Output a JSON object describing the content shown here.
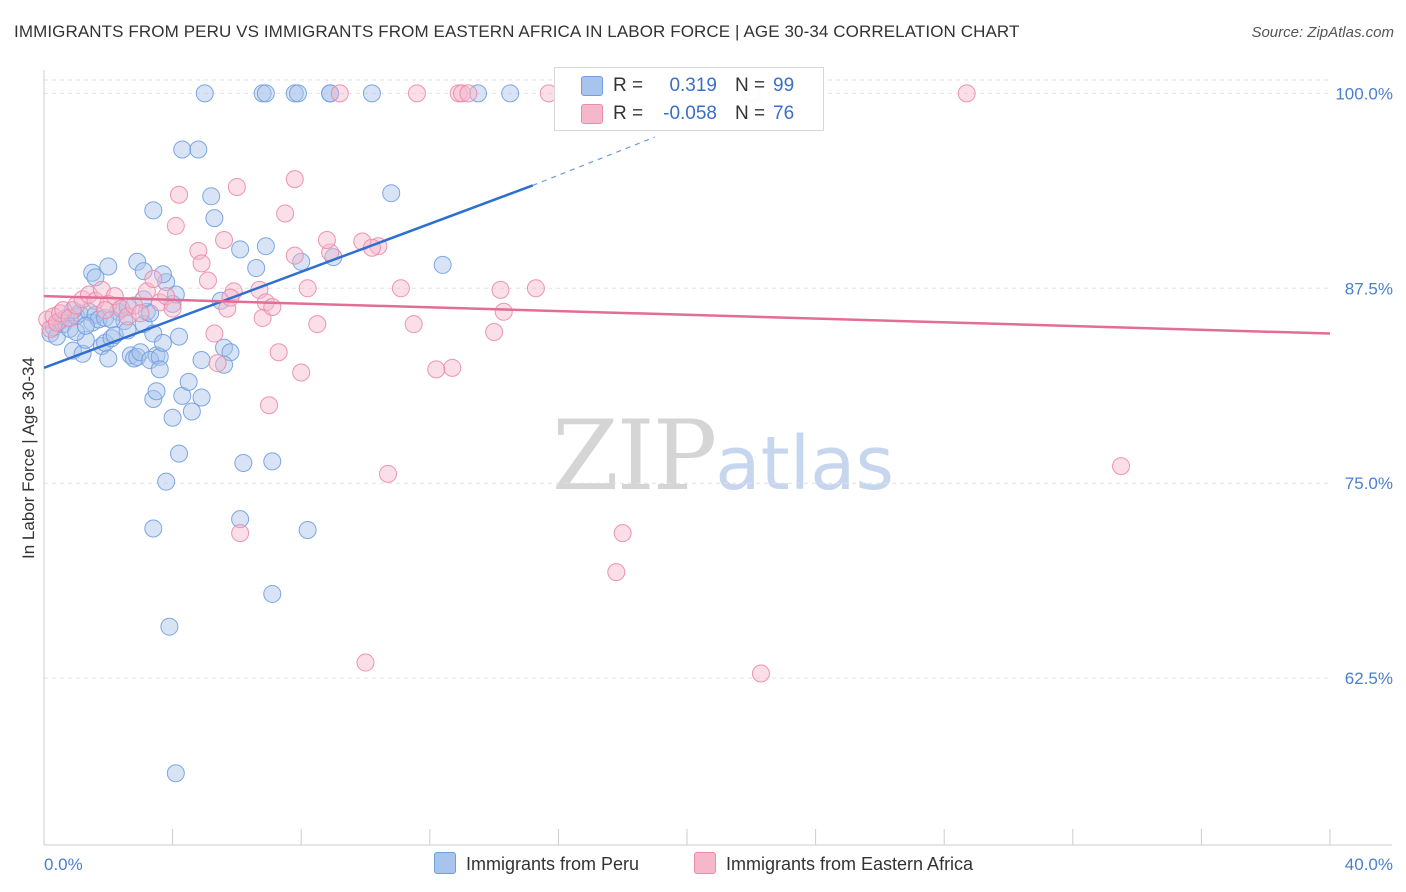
{
  "header": {
    "title": "IMMIGRANTS FROM PERU VS IMMIGRANTS FROM EASTERN AFRICA IN LABOR FORCE | AGE 30-34 CORRELATION CHART",
    "source": "Source: ZipAtlas.com"
  },
  "watermark": {
    "zip": "ZIP",
    "atlas": "atlas"
  },
  "legend": {
    "rows": [
      {
        "r_label": "R =",
        "r_value": "0.319",
        "n_label": "N =",
        "n_value": "99",
        "color": "#a9c4ec"
      },
      {
        "r_label": "R =",
        "r_value": "-0.058",
        "n_label": "N =",
        "n_value": "76",
        "color": "#f5b8cb"
      }
    ]
  },
  "bottom_legend": [
    {
      "label": "Immigrants from Peru",
      "color": "#a9c4ec"
    },
    {
      "label": "Immigrants from Eastern Africa",
      "color": "#f5b8cb"
    }
  ],
  "chart_data": {
    "type": "scatter",
    "title": "IMMIGRANTS FROM PERU VS IMMIGRANTS FROM EASTERN AFRICA IN LABOR FORCE | AGE 30-34 CORRELATION CHART",
    "xlabel": "",
    "ylabel": "In Labor Force | Age 30-34",
    "xlim": [
      0,
      40
    ],
    "ylim": [
      51.8,
      101.5
    ],
    "x_tick_labels": [
      "0.0%",
      "40.0%"
    ],
    "y_ticks": [
      100.0,
      87.5,
      75.0,
      62.5
    ],
    "y_tick_labels": [
      "100.0%",
      "87.5%",
      "75.0%",
      "62.5%"
    ],
    "grid": true,
    "legend_placement": "top-center",
    "series": [
      {
        "name": "Immigrants from Peru",
        "color": "#6f9fe0",
        "fill": "#a9c4ec",
        "trend": {
          "x": [
            0.0,
            15.2
          ],
          "y": [
            82.4,
            94.1
          ],
          "dashed_to": [
            19.0,
            97.2
          ]
        },
        "points": [
          [
            0.2,
            84.6
          ],
          [
            0.3,
            85.0
          ],
          [
            0.4,
            84.4
          ],
          [
            0.5,
            85.4
          ],
          [
            0.6,
            85.2
          ],
          [
            0.7,
            85.6
          ],
          [
            0.8,
            84.9
          ],
          [
            0.9,
            83.5
          ],
          [
            1.0,
            85.7
          ],
          [
            1.1,
            85.9
          ],
          [
            1.2,
            83.3
          ],
          [
            1.3,
            84.2
          ],
          [
            1.4,
            86.0
          ],
          [
            1.5,
            85.3
          ],
          [
            1.6,
            85.8
          ],
          [
            1.7,
            85.5
          ],
          [
            1.5,
            88.5
          ],
          [
            1.6,
            88.2
          ],
          [
            1.8,
            83.8
          ],
          [
            1.9,
            84.0
          ],
          [
            2.0,
            83.0
          ],
          [
            2.1,
            84.3
          ],
          [
            2.2,
            84.5
          ],
          [
            2.0,
            88.9
          ],
          [
            2.3,
            86.0
          ],
          [
            2.4,
            86.2
          ],
          [
            2.5,
            85.4
          ],
          [
            2.6,
            84.8
          ],
          [
            2.7,
            83.2
          ],
          [
            2.8,
            83.0
          ],
          [
            2.9,
            83.1
          ],
          [
            3.0,
            83.4
          ],
          [
            2.9,
            89.2
          ],
          [
            3.1,
            85.2
          ],
          [
            3.2,
            86.0
          ],
          [
            3.1,
            88.6
          ],
          [
            3.3,
            85.9
          ],
          [
            3.4,
            84.6
          ],
          [
            3.5,
            83.2
          ],
          [
            3.4,
            80.4
          ],
          [
            3.3,
            82.9
          ],
          [
            3.6,
            83.1
          ],
          [
            3.5,
            80.9
          ],
          [
            3.6,
            82.3
          ],
          [
            3.7,
            84.0
          ],
          [
            3.8,
            87.9
          ],
          [
            3.7,
            88.4
          ],
          [
            3.8,
            75.1
          ],
          [
            4.0,
            86.5
          ],
          [
            4.1,
            87.1
          ],
          [
            4.2,
            84.4
          ],
          [
            4.0,
            79.2
          ],
          [
            4.2,
            76.9
          ],
          [
            4.3,
            80.6
          ],
          [
            3.4,
            72.1
          ],
          [
            4.5,
            81.5
          ],
          [
            4.3,
            96.4
          ],
          [
            4.8,
            96.4
          ],
          [
            5.2,
            93.4
          ],
          [
            5.3,
            92.0
          ],
          [
            4.6,
            79.6
          ],
          [
            4.9,
            80.5
          ],
          [
            4.9,
            82.9
          ],
          [
            5.5,
            86.7
          ],
          [
            5.6,
            83.7
          ],
          [
            5.8,
            83.4
          ],
          [
            5.6,
            82.6
          ],
          [
            6.2,
            76.3
          ],
          [
            6.1,
            90.0
          ],
          [
            6.6,
            88.8
          ],
          [
            6.1,
            72.7
          ],
          [
            6.9,
            90.2
          ],
          [
            7.1,
            67.9
          ],
          [
            7.1,
            76.4
          ],
          [
            8.0,
            89.2
          ],
          [
            8.2,
            72.0
          ],
          [
            9.0,
            89.5
          ],
          [
            3.9,
            65.8
          ],
          [
            4.1,
            56.4
          ],
          [
            8.9,
            100.0
          ],
          [
            5.0,
            100.0
          ],
          [
            6.8,
            100.0
          ],
          [
            6.9,
            100.0
          ],
          [
            7.8,
            100.0
          ],
          [
            7.9,
            100.0
          ],
          [
            8.9,
            100.0
          ],
          [
            10.2,
            100.0
          ],
          [
            13.5,
            100.0
          ],
          [
            14.5,
            100.0
          ],
          [
            3.4,
            92.5
          ],
          [
            10.8,
            93.6
          ],
          [
            12.4,
            89.0
          ],
          [
            1.9,
            85.6
          ],
          [
            2.6,
            86.3
          ],
          [
            1.0,
            84.7
          ],
          [
            1.3,
            85.1
          ],
          [
            0.9,
            86.1
          ],
          [
            2.1,
            85.5
          ],
          [
            3.1,
            86.8
          ]
        ]
      },
      {
        "name": "Immigrants from Eastern Africa",
        "color": "#ec8aa8",
        "fill": "#f5b8cb",
        "trend": {
          "x": [
            0.0,
            40.0
          ],
          "y": [
            87.0,
            84.6
          ]
        },
        "points": [
          [
            0.1,
            85.5
          ],
          [
            0.2,
            84.9
          ],
          [
            0.3,
            85.7
          ],
          [
            0.4,
            85.3
          ],
          [
            0.5,
            85.9
          ],
          [
            0.6,
            86.1
          ],
          [
            0.8,
            85.6
          ],
          [
            1.0,
            86.4
          ],
          [
            1.2,
            86.8
          ],
          [
            1.4,
            87.1
          ],
          [
            1.6,
            86.7
          ],
          [
            1.8,
            87.4
          ],
          [
            2.0,
            86.5
          ],
          [
            2.2,
            87.0
          ],
          [
            2.4,
            86.2
          ],
          [
            2.6,
            85.7
          ],
          [
            2.8,
            86.4
          ],
          [
            3.0,
            85.9
          ],
          [
            3.2,
            87.3
          ],
          [
            3.4,
            88.1
          ],
          [
            3.6,
            86.6
          ],
          [
            3.8,
            87.0
          ],
          [
            4.0,
            86.2
          ],
          [
            4.1,
            91.5
          ],
          [
            4.2,
            93.5
          ],
          [
            4.8,
            89.9
          ],
          [
            4.9,
            89.1
          ],
          [
            5.1,
            88.0
          ],
          [
            5.6,
            90.6
          ],
          [
            5.7,
            86.2
          ],
          [
            5.9,
            87.3
          ],
          [
            5.4,
            82.7
          ],
          [
            5.3,
            84.6
          ],
          [
            5.8,
            86.9
          ],
          [
            6.0,
            94.0
          ],
          [
            6.7,
            87.4
          ],
          [
            6.9,
            86.6
          ],
          [
            6.8,
            85.6
          ],
          [
            7.1,
            86.3
          ],
          [
            7.0,
            80.0
          ],
          [
            7.3,
            83.4
          ],
          [
            7.5,
            92.3
          ],
          [
            7.8,
            89.6
          ],
          [
            7.8,
            94.5
          ],
          [
            8.2,
            87.5
          ],
          [
            8.0,
            82.1
          ],
          [
            8.9,
            89.8
          ],
          [
            8.8,
            90.6
          ],
          [
            8.5,
            85.2
          ],
          [
            9.9,
            90.5
          ],
          [
            10.4,
            90.2
          ],
          [
            10.2,
            90.1
          ],
          [
            10.7,
            75.6
          ],
          [
            11.1,
            87.5
          ],
          [
            11.5,
            85.2
          ],
          [
            12.9,
            100.0
          ],
          [
            13.0,
            100.0
          ],
          [
            13.2,
            100.0
          ],
          [
            14.2,
            87.4
          ],
          [
            14.3,
            86.0
          ],
          [
            14.0,
            84.7
          ],
          [
            12.2,
            82.3
          ],
          [
            12.7,
            82.4
          ],
          [
            15.3,
            87.5
          ],
          [
            15.7,
            100.0
          ],
          [
            18.0,
            71.8
          ],
          [
            17.8,
            69.3
          ],
          [
            22.3,
            62.8
          ],
          [
            10.0,
            63.5
          ],
          [
            22.0,
            100.0
          ],
          [
            28.7,
            100.0
          ],
          [
            33.5,
            76.1
          ],
          [
            6.1,
            71.8
          ],
          [
            9.2,
            100.0
          ],
          [
            11.6,
            100.0
          ],
          [
            1.9,
            86.1
          ]
        ]
      }
    ]
  }
}
